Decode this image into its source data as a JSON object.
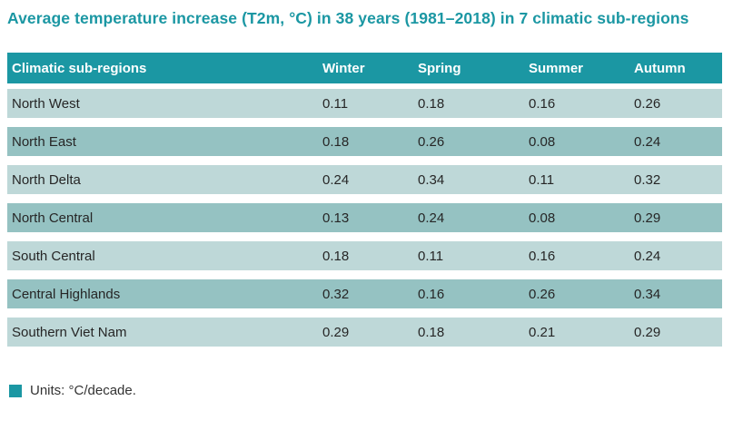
{
  "title": "Average temperature increase (T2m, °C) in 38 years (1981–2018) in 7 climatic sub-regions",
  "colors": {
    "accent_teal": "#1b97a3",
    "row_light": "#bed8d8",
    "row_dark": "#95c2c2",
    "header_text": "#ffffff",
    "body_text": "#262626"
  },
  "table": {
    "columns": [
      "Climatic sub-regions",
      "Winter",
      "Spring",
      "Summer",
      "Autumn"
    ],
    "rows": [
      {
        "region": "North West",
        "values": [
          "0.11",
          "0.18",
          "0.16",
          "0.26"
        ]
      },
      {
        "region": "North East",
        "values": [
          "0.18",
          "0.26",
          "0.08",
          "0.24"
        ]
      },
      {
        "region": "North Delta",
        "values": [
          "0.24",
          "0.34",
          "0.11",
          "0.32"
        ]
      },
      {
        "region": "North Central",
        "values": [
          "0.13",
          "0.24",
          "0.08",
          "0.29"
        ]
      },
      {
        "region": "South Central",
        "values": [
          "0.18",
          "0.11",
          "0.16",
          "0.24"
        ]
      },
      {
        "region": "Central Highlands",
        "values": [
          "0.32",
          "0.16",
          "0.26",
          "0.34"
        ]
      },
      {
        "region": "Southern Viet Nam",
        "values": [
          "0.29",
          "0.18",
          "0.21",
          "0.29"
        ]
      }
    ]
  },
  "footer": {
    "units_label": "Units: °C/decade."
  },
  "chart_data": {
    "type": "table",
    "title": "Average temperature increase (T2m, °C) in 38 years (1981–2018) in 7 climatic sub-regions",
    "categories": [
      "North West",
      "North East",
      "North Delta",
      "North Central",
      "South Central",
      "Central Highlands",
      "Southern Viet Nam"
    ],
    "series": [
      {
        "name": "Winter",
        "values": [
          0.11,
          0.18,
          0.24,
          0.13,
          0.18,
          0.32,
          0.29
        ]
      },
      {
        "name": "Spring",
        "values": [
          0.18,
          0.26,
          0.34,
          0.24,
          0.11,
          0.16,
          0.18
        ]
      },
      {
        "name": "Summer",
        "values": [
          0.16,
          0.08,
          0.11,
          0.08,
          0.16,
          0.26,
          0.21
        ]
      },
      {
        "name": "Autumn",
        "values": [
          0.26,
          0.24,
          0.32,
          0.29,
          0.24,
          0.34,
          0.29
        ]
      }
    ],
    "units": "°C/decade"
  }
}
